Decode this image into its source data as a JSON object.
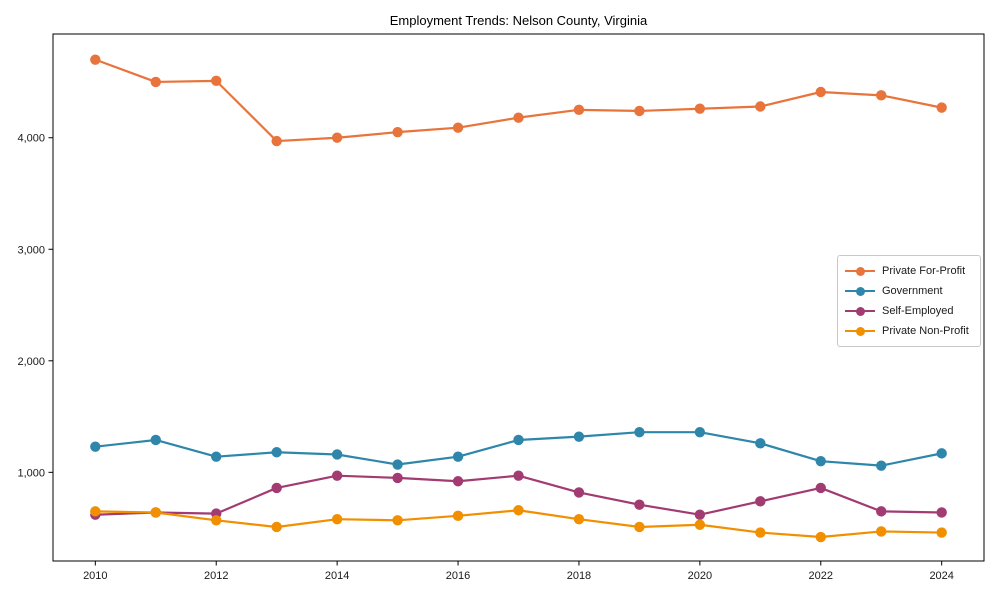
{
  "figure": {
    "title": "Employment Trends: Nelson County, Virginia"
  },
  "chart_data": {
    "type": "line",
    "title": "Employment Trends: Nelson County, Virginia",
    "xlabel": "",
    "ylabel": "",
    "grid": false,
    "legend_position": "center-right",
    "x": [
      2010,
      2011,
      2012,
      2013,
      2014,
      2015,
      2016,
      2017,
      2018,
      2019,
      2020,
      2021,
      2022,
      2023,
      2024
    ],
    "series": [
      {
        "name": "Private For-Profit",
        "color": "#E8743B",
        "values": [
          4700,
          4500,
          4510,
          3970,
          4000,
          4050,
          4090,
          4180,
          4250,
          4240,
          4260,
          4280,
          4410,
          4380,
          4270
        ]
      },
      {
        "name": "Government",
        "color": "#2E86AB",
        "values": [
          1230,
          1290,
          1140,
          1180,
          1160,
          1070,
          1140,
          1290,
          1320,
          1360,
          1360,
          1260,
          1100,
          1060,
          1170
        ]
      },
      {
        "name": "Self-Employed",
        "color": "#A23B72",
        "values": [
          620,
          640,
          630,
          860,
          970,
          950,
          920,
          970,
          820,
          710,
          620,
          740,
          860,
          650,
          640
        ]
      },
      {
        "name": "Private Non-Profit",
        "color": "#F18F01",
        "values": [
          650,
          640,
          570,
          510,
          580,
          570,
          610,
          660,
          580,
          510,
          530,
          460,
          420,
          470,
          460
        ]
      }
    ],
    "xticks": [
      2010,
      2012,
      2014,
      2016,
      2018,
      2020,
      2022,
      2024
    ],
    "xtick_labels": [
      "2010",
      "2012",
      "2014",
      "2016",
      "2018",
      "2020",
      "2022",
      "2024"
    ],
    "yticks": [
      1000,
      2000,
      3000,
      4000
    ],
    "ytick_labels": [
      "1,000",
      "2,000",
      "3,000",
      "4,000"
    ],
    "xlim": [
      2009.3,
      2024.7
    ],
    "ylim": [
      205,
      4930
    ]
  }
}
